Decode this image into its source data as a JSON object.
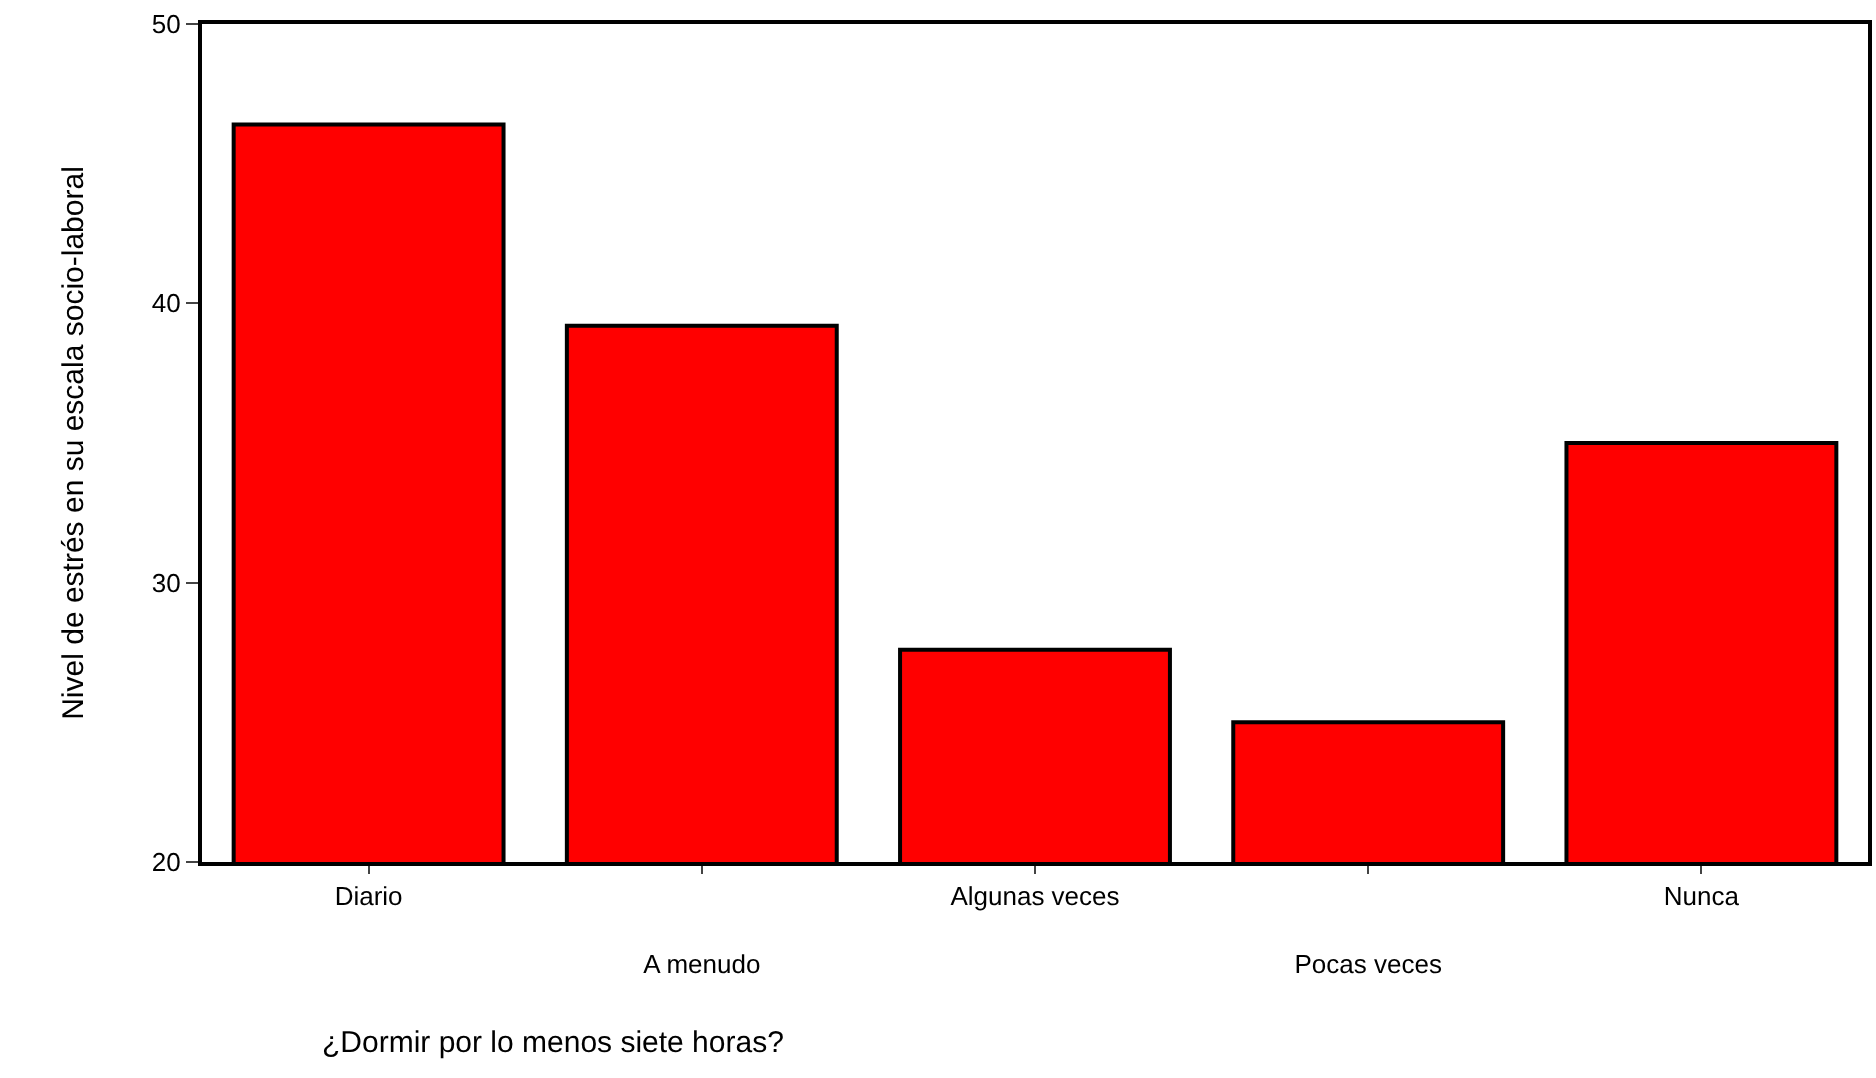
{
  "chart_data": {
    "type": "bar",
    "xlabel": "¿Dormir por lo menos siete horas?",
    "ylabel": "Nivel de estrés en su escala socio-laboral",
    "categories": [
      "Diario",
      "A menudo",
      "Algunas veces",
      "Pocas veces",
      "Nunca"
    ],
    "values": [
      46.4,
      39.2,
      27.6,
      25.0,
      35.0
    ],
    "color": "#ff0000",
    "ylim": [
      20,
      50
    ],
    "yticks": [
      20,
      30,
      40,
      50
    ]
  }
}
